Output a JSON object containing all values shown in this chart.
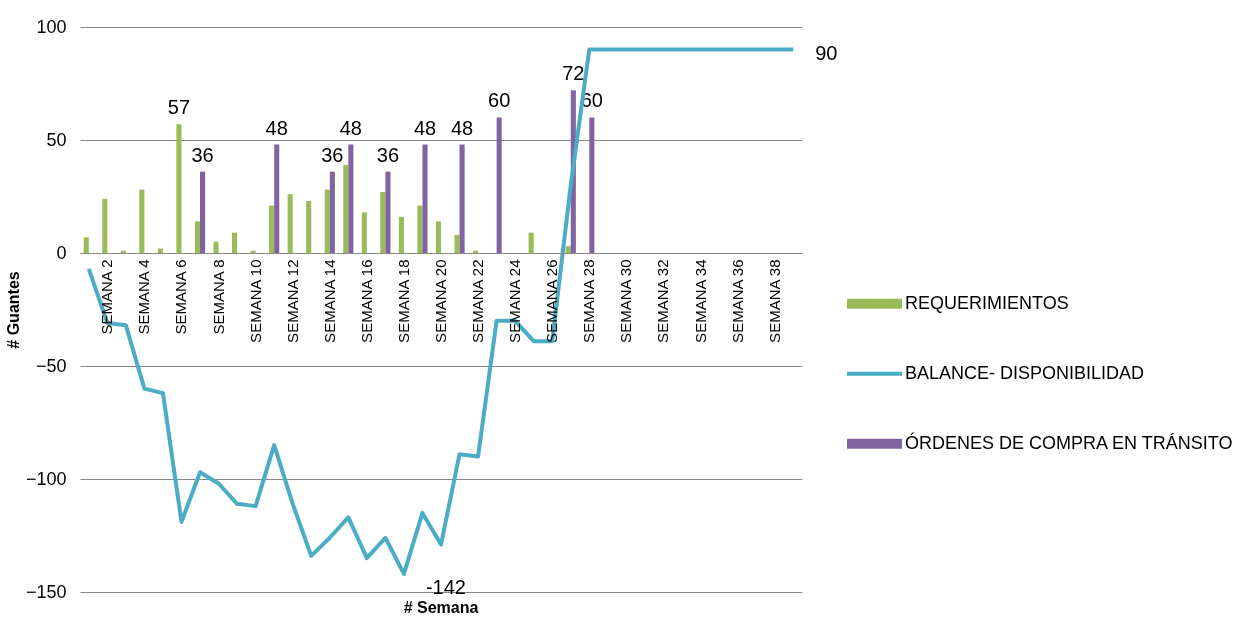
{
  "chart_data": {
    "type": "bar",
    "xlabel": "# Semana",
    "ylabel": "# Guantes",
    "categories": [
      null,
      "SEMANA 2",
      null,
      "SEMANA 4",
      null,
      "SEMANA 6",
      null,
      "SEMANA 8",
      null,
      "SEMANA 10",
      null,
      "SEMANA 12",
      null,
      "SEMANA 14",
      null,
      "SEMANA 16",
      null,
      "SEMANA 18",
      null,
      "SEMANA 20",
      null,
      "SEMANA 22",
      null,
      "SEMANA 24",
      null,
      "SEMANA 26",
      null,
      "SEMANA 28",
      null,
      "SEMANA 30",
      null,
      "SEMANA 32",
      null,
      "SEMANA 34",
      null,
      "SEMANA 36",
      null,
      "SEMANA 38",
      null
    ],
    "series": [
      {
        "name": "REQUERIMIENTOS",
        "color": "#9bbb59",
        "values": [
          7,
          24,
          1,
          28,
          2,
          57,
          14,
          5,
          9,
          1,
          21,
          26,
          23,
          28,
          39,
          18,
          27,
          16,
          21,
          14,
          8,
          1,
          null,
          null,
          9,
          null,
          3,
          null,
          null,
          null,
          null,
          null,
          null,
          null,
          null,
          null,
          null,
          null,
          null
        ],
        "value_labels": [
          null,
          null,
          null,
          null,
          null,
          "57",
          null,
          null,
          null,
          null,
          null,
          null,
          null,
          null,
          null,
          null,
          null,
          null,
          null,
          null,
          null,
          null,
          null,
          null,
          null,
          null,
          null,
          null,
          null,
          null,
          null,
          null,
          null,
          null,
          null,
          null,
          null,
          null,
          null
        ]
      },
      {
        "name": "BALANCE- DISPONIBILIDAD",
        "type": "line",
        "color": "#4bacc6",
        "values": [
          -7,
          -31,
          -32,
          -60,
          -62,
          -119,
          -97,
          -102,
          -111,
          -112,
          -85,
          -111,
          -134,
          -126,
          -117,
          -135,
          -126,
          -142,
          -115,
          -129,
          -89,
          -90,
          -30,
          -30,
          -39,
          -39,
          30,
          90,
          90,
          90,
          90,
          90,
          90,
          90,
          90,
          90,
          90,
          90,
          90
        ],
        "value_labels": [
          null,
          null,
          null,
          null,
          null,
          null,
          null,
          null,
          null,
          null,
          null,
          null,
          null,
          null,
          null,
          null,
          null,
          "-142",
          null,
          null,
          null,
          null,
          null,
          null,
          null,
          null,
          null,
          null,
          null,
          null,
          null,
          null,
          null,
          null,
          null,
          null,
          null,
          null,
          "90"
        ]
      },
      {
        "name": "ÓRDENES DE COMPRA EN TRÁNSITO",
        "color": "#8064a2",
        "values": [
          null,
          null,
          null,
          null,
          null,
          null,
          36,
          null,
          null,
          null,
          48,
          null,
          null,
          36,
          48,
          null,
          36,
          null,
          48,
          null,
          48,
          null,
          60,
          null,
          null,
          null,
          72,
          60,
          null,
          null,
          null,
          null,
          null,
          null,
          null,
          null,
          null,
          null,
          null
        ],
        "value_labels": [
          null,
          null,
          null,
          null,
          null,
          null,
          "36",
          null,
          null,
          null,
          "48",
          null,
          null,
          "36",
          "48",
          null,
          "36",
          null,
          "48",
          null,
          "48",
          null,
          "60",
          null,
          null,
          null,
          "72",
          "60",
          null,
          null,
          null,
          null,
          null,
          null,
          null,
          null,
          null,
          null,
          null
        ]
      }
    ],
    "ylim": [
      -150,
      100
    ],
    "yticks": [
      -150,
      -100,
      -50,
      0,
      50,
      100
    ],
    "grid": "y",
    "legend": "right",
    "marker": "none",
    "line_style": "solid"
  }
}
